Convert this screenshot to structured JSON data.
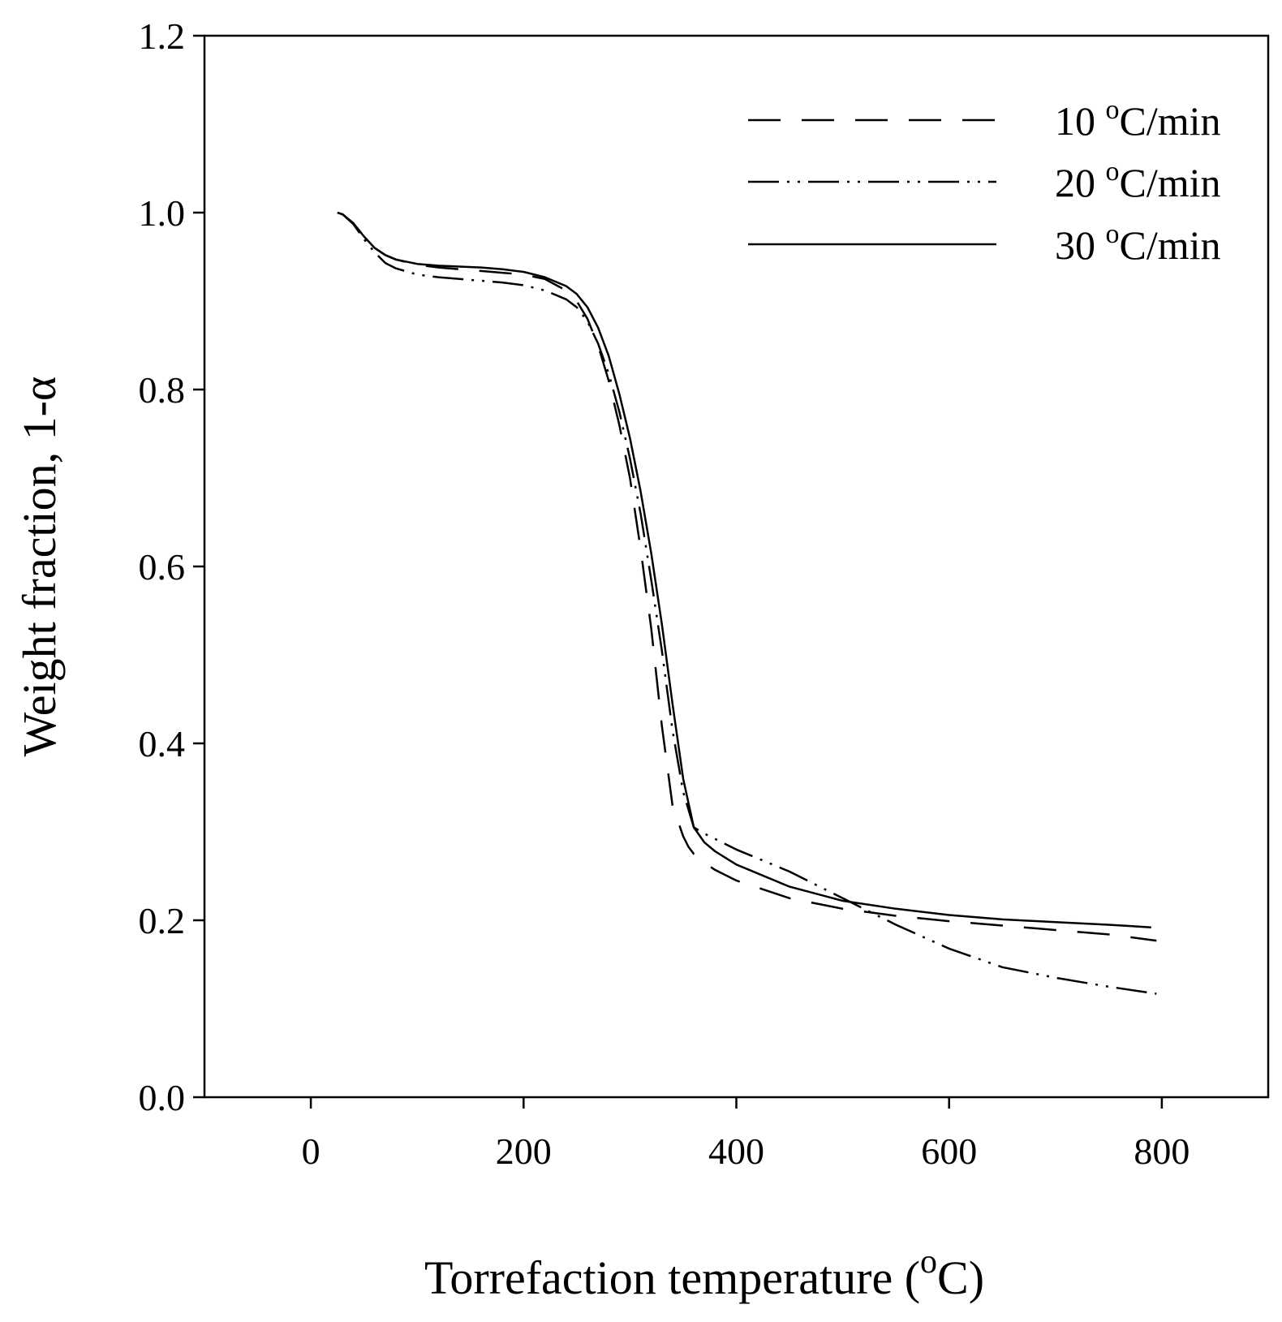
{
  "chart_data": {
    "type": "line",
    "title": "",
    "xlabel": {
      "main": "Torrefaction temperature (",
      "sup": "o",
      "tail": "C)"
    },
    "ylabel": "Weight fraction, 1-α",
    "xlim": [
      -100,
      900
    ],
    "ylim": [
      0.0,
      1.2
    ],
    "xticks": [
      0,
      200,
      400,
      600,
      800
    ],
    "xtick_labels": [
      "0",
      "200",
      "400",
      "600",
      "800"
    ],
    "yticks": [
      0.0,
      0.2,
      0.4,
      0.6,
      0.8,
      1.0,
      1.2
    ],
    "ytick_labels": [
      "0.0",
      "0.2",
      "0.4",
      "0.6",
      "0.8",
      "1.0",
      "1.2"
    ],
    "grid": false,
    "legend_position": "top-right",
    "colors": {
      "line": "#000000",
      "background": "#ffffff"
    },
    "series": [
      {
        "name": "10 °C/min",
        "label_num": "10 ",
        "label_sup": "o",
        "label_unit": "C/min",
        "style": "dashed",
        "x": [
          25,
          30,
          40,
          50,
          60,
          70,
          80,
          100,
          120,
          140,
          160,
          180,
          200,
          220,
          240,
          250,
          260,
          270,
          280,
          290,
          300,
          310,
          320,
          330,
          340,
          350,
          355,
          360,
          370,
          380,
          400,
          450,
          500,
          550,
          600,
          650,
          700,
          750,
          795
        ],
        "y": [
          1.0,
          0.998,
          0.988,
          0.973,
          0.96,
          0.952,
          0.947,
          0.941,
          0.938,
          0.936,
          0.934,
          0.932,
          0.93,
          0.925,
          0.912,
          0.9,
          0.88,
          0.85,
          0.81,
          0.76,
          0.7,
          0.62,
          0.53,
          0.42,
          0.33,
          0.295,
          0.283,
          0.275,
          0.265,
          0.257,
          0.245,
          0.225,
          0.213,
          0.205,
          0.199,
          0.194,
          0.189,
          0.184,
          0.177
        ]
      },
      {
        "name": "20 °C/min",
        "label_num": "20 ",
        "label_sup": "o",
        "label_unit": "C/min",
        "style": "dash-dot-dot",
        "x": [
          25,
          30,
          40,
          50,
          60,
          70,
          80,
          100,
          120,
          140,
          160,
          180,
          200,
          220,
          240,
          250,
          260,
          270,
          280,
          290,
          300,
          310,
          320,
          330,
          340,
          350,
          360,
          370,
          380,
          400,
          450,
          500,
          550,
          600,
          650,
          700,
          750,
          795
        ],
        "y": [
          1.0,
          0.998,
          0.987,
          0.97,
          0.955,
          0.943,
          0.937,
          0.93,
          0.927,
          0.925,
          0.923,
          0.921,
          0.918,
          0.912,
          0.902,
          0.893,
          0.877,
          0.852,
          0.818,
          0.775,
          0.722,
          0.66,
          0.585,
          0.505,
          0.415,
          0.345,
          0.305,
          0.298,
          0.292,
          0.28,
          0.255,
          0.225,
          0.195,
          0.168,
          0.147,
          0.135,
          0.125,
          0.117
        ]
      },
      {
        "name": "30 °C/min",
        "label_num": "30 ",
        "label_sup": "o",
        "label_unit": "C/min",
        "style": "solid",
        "x": [
          25,
          30,
          40,
          50,
          60,
          70,
          80,
          100,
          120,
          140,
          160,
          180,
          200,
          220,
          240,
          250,
          260,
          270,
          280,
          290,
          300,
          310,
          320,
          330,
          340,
          350,
          360,
          370,
          380,
          400,
          450,
          500,
          550,
          600,
          650,
          700,
          750,
          790
        ],
        "y": [
          1.0,
          0.998,
          0.988,
          0.973,
          0.96,
          0.952,
          0.947,
          0.942,
          0.94,
          0.939,
          0.938,
          0.936,
          0.933,
          0.927,
          0.917,
          0.908,
          0.893,
          0.87,
          0.838,
          0.795,
          0.745,
          0.685,
          0.615,
          0.535,
          0.445,
          0.36,
          0.305,
          0.288,
          0.278,
          0.263,
          0.238,
          0.222,
          0.213,
          0.206,
          0.201,
          0.198,
          0.195,
          0.192
        ]
      }
    ]
  }
}
